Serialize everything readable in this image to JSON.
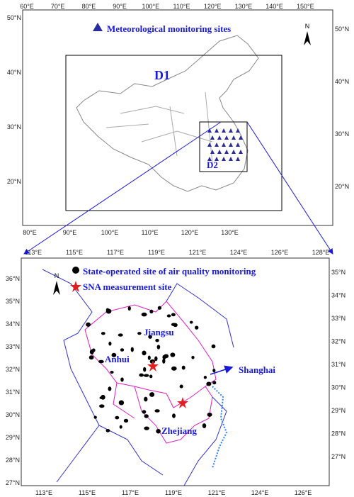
{
  "top_panel": {
    "legend": "Meteorological monitoring sites",
    "north": "N",
    "domains": [
      "D1",
      "D2"
    ],
    "top_ticks": [
      "60°E",
      "70°E",
      "80°E",
      "90°E",
      "100°E",
      "110°E",
      "120°E",
      "130°E",
      "140°E",
      "150°E"
    ],
    "bottom_ticks": [
      "80°E",
      "90°E",
      "100°E",
      "110°E",
      "120°E",
      "130°E"
    ],
    "left_ticks": [
      "50°N",
      "40°N",
      "30°N",
      "20°N"
    ],
    "right_ticks": [
      "50°N",
      "40°N",
      "30°N",
      "20°N"
    ]
  },
  "bottom_panel": {
    "legend": [
      "State-operated site of air quality monitoring",
      "SNA measurement site"
    ],
    "north": "N",
    "regions": [
      "Jiangsu",
      "Anhui",
      "Zhejiang",
      "Shanghai"
    ],
    "top_ticks": [
      "113°E",
      "115°E",
      "117°E",
      "119°E",
      "121°E",
      "124°E",
      "126°E",
      "128°E"
    ],
    "bottom_ticks": [
      "113°E",
      "115°E",
      "117°E",
      "119°E",
      "121°E",
      "124°E",
      "126°E"
    ],
    "left_ticks": [
      "36°N",
      "35°N",
      "34°N",
      "33°N",
      "32°N",
      "31°N",
      "30°N",
      "29°N",
      "28°N",
      "27°N"
    ],
    "right_ticks": [
      "35°N",
      "34°N",
      "33°N",
      "32°N",
      "31°N",
      "30°N",
      "29°N",
      "28°N",
      "27°N"
    ]
  }
}
